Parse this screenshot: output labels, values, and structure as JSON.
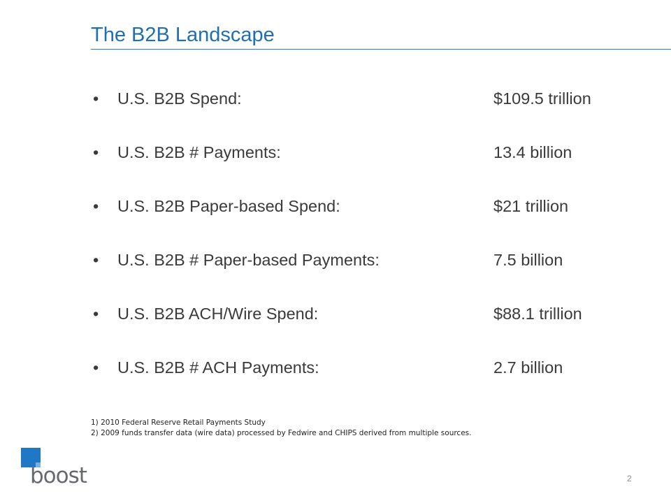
{
  "slide": {
    "title": "The B2B Landscape",
    "bullets": [
      {
        "marker": "•",
        "label": "U.S. B2B Spend:",
        "value": "$109.5 trillion"
      },
      {
        "marker": "•",
        "label": "U.S. B2B # Payments:",
        "value": "13.4 billion"
      },
      {
        "marker": "•",
        "label": "U.S. B2B Paper-based Spend:",
        "value": "$21 trillion"
      },
      {
        "marker": "•",
        "label": "U.S. B2B # Paper-based Payments:",
        "value": "7.5 billion"
      },
      {
        "marker": "•",
        "label": "U.S. B2B ACH/Wire Spend:",
        "value": "$88.1 trillion"
      },
      {
        "marker": "•",
        "label": "U.S. B2B # ACH Payments:",
        "value": "2.7 billion"
      }
    ],
    "footnotes": [
      "1) 2010 Federal Reserve Retail Payments Study",
      "2) 2009 funds transfer data (wire data) processed by Fedwire and CHIPS derived from multiple sources."
    ],
    "logo_text": "boost",
    "page_number": "2"
  },
  "colors": {
    "title": "#1f6fb2",
    "rule": "#2a7ec0",
    "body_text": "#3a3a3a",
    "logo_blue": "#1f77c5",
    "logo_gray": "#666a70"
  }
}
